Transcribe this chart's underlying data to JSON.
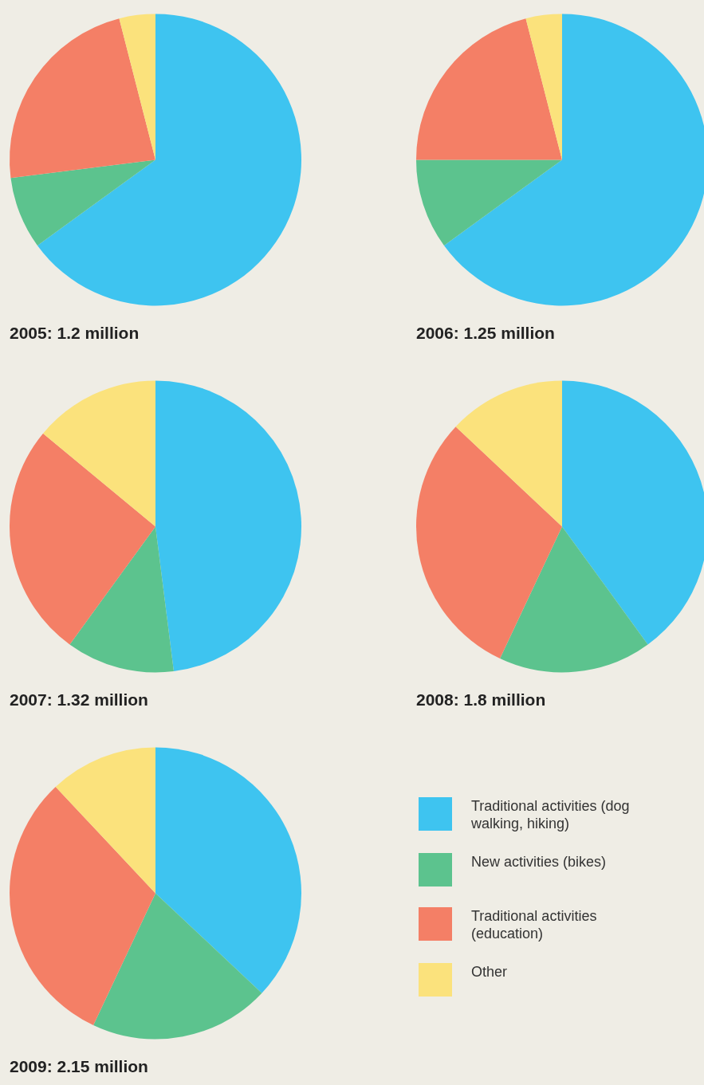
{
  "chart_data": [
    {
      "type": "pie",
      "title": "2005: 1.2 million",
      "values": [
        65,
        8,
        23,
        4
      ],
      "colors": [
        "#3ec4f0",
        "#5cc38e",
        "#f47f66",
        "#fbe27c"
      ]
    },
    {
      "type": "pie",
      "title": "2006: 1.25 million",
      "values": [
        65,
        10,
        21,
        4
      ],
      "colors": [
        "#3ec4f0",
        "#5cc38e",
        "#f47f66",
        "#fbe27c"
      ]
    },
    {
      "type": "pie",
      "title": "2007: 1.32 million",
      "values": [
        48,
        12,
        26,
        14
      ],
      "colors": [
        "#3ec4f0",
        "#5cc38e",
        "#f47f66",
        "#fbe27c"
      ]
    },
    {
      "type": "pie",
      "title": "2008: 1.8 million",
      "values": [
        40,
        17,
        30,
        13
      ],
      "colors": [
        "#3ec4f0",
        "#5cc38e",
        "#f47f66",
        "#fbe27c"
      ]
    },
    {
      "type": "pie",
      "title": "2009: 2.15 million",
      "categories": [
        "Traditional activities (dog walking, hiking)",
        "New activities (bikes)",
        "Traditional activities (education)",
        "Other"
      ],
      "values": [
        37,
        20,
        31,
        12
      ],
      "colors": [
        "#3ec4f0",
        "#5cc38e",
        "#f47f66",
        "#fbe27c"
      ],
      "legend": "right"
    }
  ]
}
